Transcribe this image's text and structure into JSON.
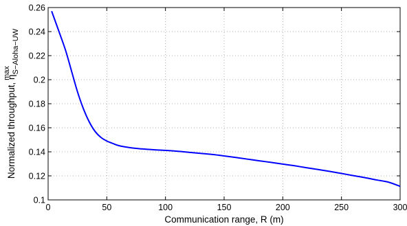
{
  "chart_data": {
    "type": "line",
    "title": "",
    "xlabel": "Communication range, R (m)",
    "ylabel": {
      "base": "Normalized throughput, η",
      "superscript": "max",
      "subscript": "S−Aloha−UW"
    },
    "xlim": [
      0,
      300
    ],
    "ylim": [
      0.1,
      0.26
    ],
    "xticks": [
      0,
      50,
      100,
      150,
      200,
      250,
      300
    ],
    "yticks": [
      0.1,
      0.12,
      0.14,
      0.16,
      0.18,
      0.2,
      0.22,
      0.24,
      0.26
    ],
    "xtick_labels": [
      "0",
      "50",
      "100",
      "150",
      "200",
      "250",
      "300"
    ],
    "ytick_labels": [
      "0.1",
      "0.12",
      "0.14",
      "0.16",
      "0.18",
      "0.2",
      "0.22",
      "0.24",
      "0.26"
    ],
    "grid": true,
    "legend": "none",
    "series": [
      {
        "color": "#0000ff",
        "x": [
          3,
          10,
          15,
          20,
          25,
          30,
          35,
          40,
          45,
          50,
          55,
          60,
          70,
          80,
          90,
          100,
          110,
          120,
          130,
          140,
          150,
          160,
          170,
          180,
          190,
          200,
          210,
          220,
          230,
          240,
          250,
          260,
          270,
          280,
          290,
          300
        ],
        "y": [
          0.257,
          0.238,
          0.224,
          0.207,
          0.19,
          0.176,
          0.165,
          0.157,
          0.152,
          0.149,
          0.147,
          0.1452,
          0.1434,
          0.1424,
          0.1417,
          0.1412,
          0.1405,
          0.1396,
          0.1387,
          0.1378,
          0.1366,
          0.1353,
          0.1339,
          0.1325,
          0.1312,
          0.1298,
          0.1284,
          0.1268,
          0.1253,
          0.1237,
          0.122,
          0.1202,
          0.1185,
          0.1166,
          0.1148,
          0.1113
        ]
      }
    ]
  }
}
